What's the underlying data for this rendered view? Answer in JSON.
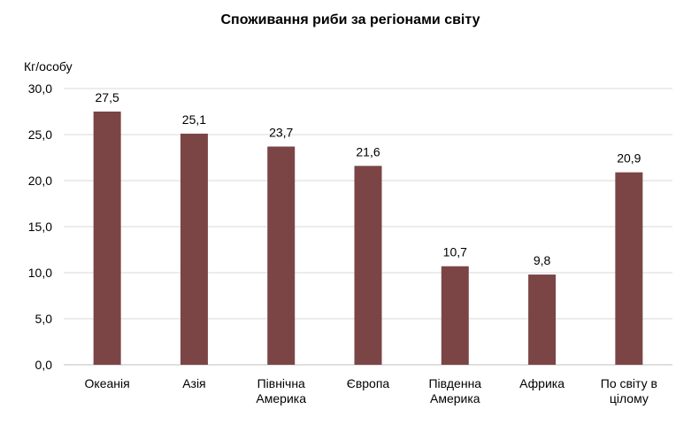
{
  "chart_data": {
    "type": "bar",
    "title": "Споживання риби за регіонами світу",
    "ylabel": "Кг/особу",
    "xlabel": "",
    "categories": [
      [
        "Океанія"
      ],
      [
        "Азія"
      ],
      [
        "Північна",
        "Америка"
      ],
      [
        "Європа"
      ],
      [
        "Південна",
        "Америка"
      ],
      [
        "Африка"
      ],
      [
        "По світу в",
        "цілому"
      ]
    ],
    "values": [
      27.5,
      25.1,
      23.7,
      21.6,
      10.7,
      9.8,
      20.9
    ],
    "data_labels": [
      "27,5",
      "25,1",
      "23,7",
      "21,6",
      "10,7",
      "9,8",
      "20,9"
    ],
    "ylim": [
      0,
      30
    ],
    "yticks": [
      {
        "value": 0,
        "label": "0,0"
      },
      {
        "value": 5,
        "label": "5,0"
      },
      {
        "value": 10,
        "label": "10,0"
      },
      {
        "value": 15,
        "label": "15,0"
      },
      {
        "value": 20,
        "label": "20,0"
      },
      {
        "value": 25,
        "label": "25,0"
      },
      {
        "value": 30,
        "label": "30,0"
      }
    ],
    "grid": true,
    "legend": "none",
    "colors": {
      "bar": "#7b4546",
      "grid": "#d9d9d9",
      "axis": "#bfbfbf"
    }
  }
}
